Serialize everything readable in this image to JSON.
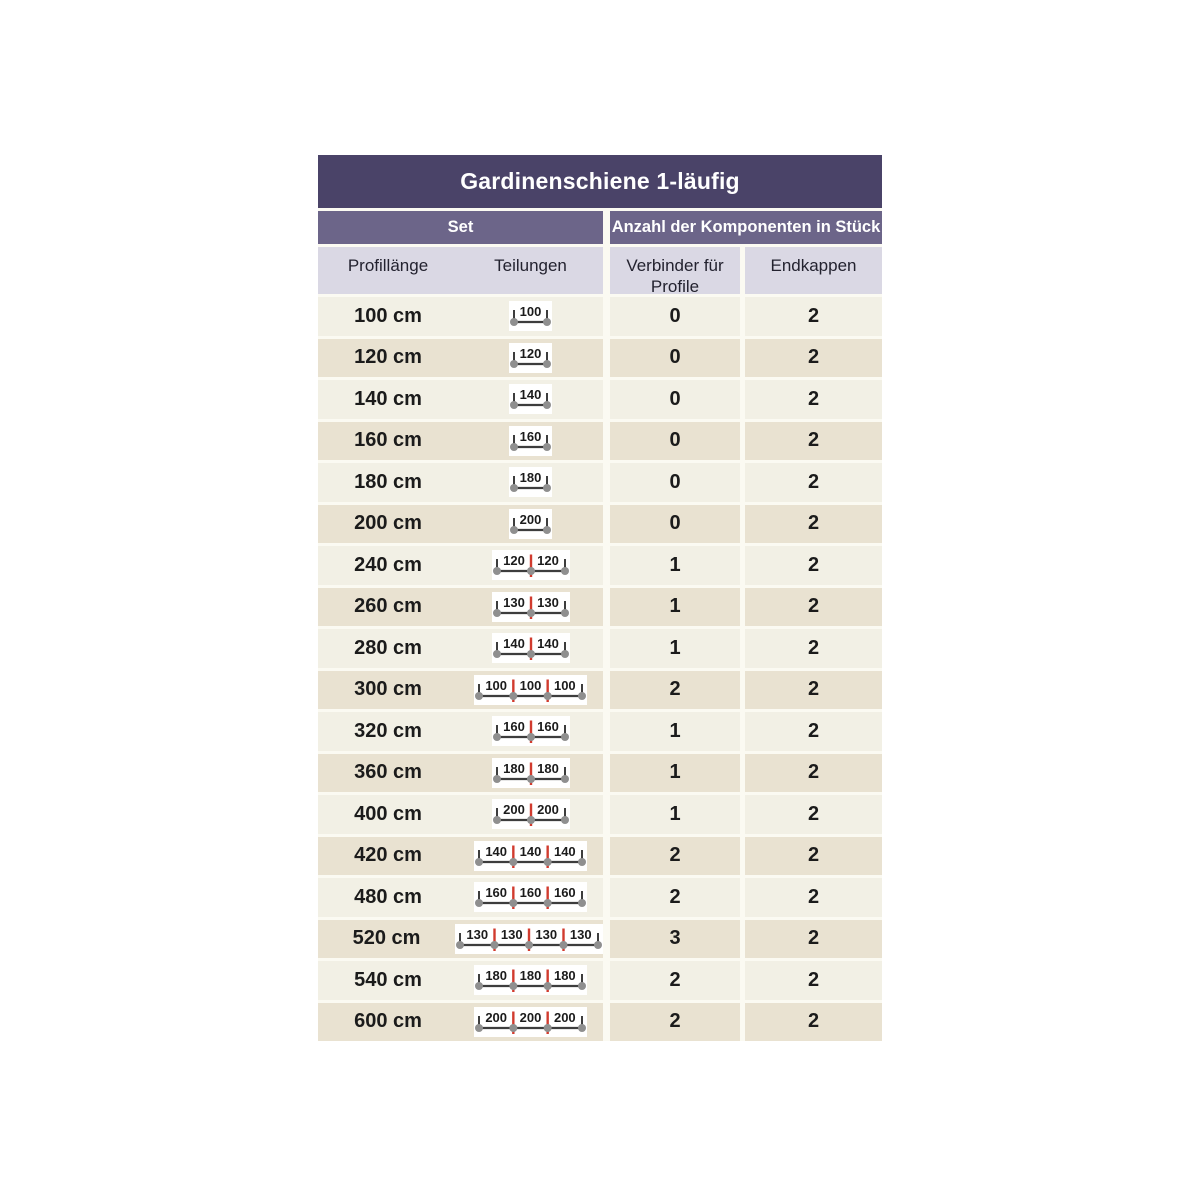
{
  "title": "Gardinenschiene 1-läufig",
  "group_headers": {
    "set": "Set",
    "components": "Anzahl der Komponenten in Stück"
  },
  "columns": {
    "length": "Profillänge",
    "divisions": "Teilungen",
    "connectors": "Verbinder für Profile",
    "endcaps": "Endkappen"
  },
  "colors": {
    "title_bg": "#4a4368",
    "group_bg": "#6c6589",
    "subheader_bg": "#dad8e4",
    "row_light": "#f2f0e5",
    "row_dark": "#e9e2d1",
    "gap_bg": "#fbfaf2",
    "text_dark": "#1b1b1b",
    "header_text": "#ffffff",
    "rail_line": "#3d3d3d",
    "rail_cap": "#8f8f8f",
    "rail_joint": "#d13b2e",
    "rail_box": "#ffffff"
  },
  "rows": [
    {
      "length": "100 cm",
      "segments": [
        100
      ],
      "connectors": "0",
      "endcaps": "2"
    },
    {
      "length": "120 cm",
      "segments": [
        120
      ],
      "connectors": "0",
      "endcaps": "2"
    },
    {
      "length": "140 cm",
      "segments": [
        140
      ],
      "connectors": "0",
      "endcaps": "2"
    },
    {
      "length": "160 cm",
      "segments": [
        160
      ],
      "connectors": "0",
      "endcaps": "2"
    },
    {
      "length": "180 cm",
      "segments": [
        180
      ],
      "connectors": "0",
      "endcaps": "2"
    },
    {
      "length": "200 cm",
      "segments": [
        200
      ],
      "connectors": "0",
      "endcaps": "2"
    },
    {
      "length": "240 cm",
      "segments": [
        120,
        120
      ],
      "connectors": "1",
      "endcaps": "2"
    },
    {
      "length": "260 cm",
      "segments": [
        130,
        130
      ],
      "connectors": "1",
      "endcaps": "2"
    },
    {
      "length": "280 cm",
      "segments": [
        140,
        140
      ],
      "connectors": "1",
      "endcaps": "2"
    },
    {
      "length": "300 cm",
      "segments": [
        100,
        100,
        100
      ],
      "connectors": "2",
      "endcaps": "2"
    },
    {
      "length": "320 cm",
      "segments": [
        160,
        160
      ],
      "connectors": "1",
      "endcaps": "2"
    },
    {
      "length": "360 cm",
      "segments": [
        180,
        180
      ],
      "connectors": "1",
      "endcaps": "2"
    },
    {
      "length": "400 cm",
      "segments": [
        200,
        200
      ],
      "connectors": "1",
      "endcaps": "2"
    },
    {
      "length": "420 cm",
      "segments": [
        140,
        140,
        140
      ],
      "connectors": "2",
      "endcaps": "2"
    },
    {
      "length": "480 cm",
      "segments": [
        160,
        160,
        160
      ],
      "connectors": "2",
      "endcaps": "2"
    },
    {
      "length": "520 cm",
      "segments": [
        130,
        130,
        130,
        130
      ],
      "connectors": "3",
      "endcaps": "2"
    },
    {
      "length": "540 cm",
      "segments": [
        180,
        180,
        180
      ],
      "connectors": "2",
      "endcaps": "2"
    },
    {
      "length": "600 cm",
      "segments": [
        200,
        200,
        200
      ],
      "connectors": "2",
      "endcaps": "2"
    }
  ]
}
